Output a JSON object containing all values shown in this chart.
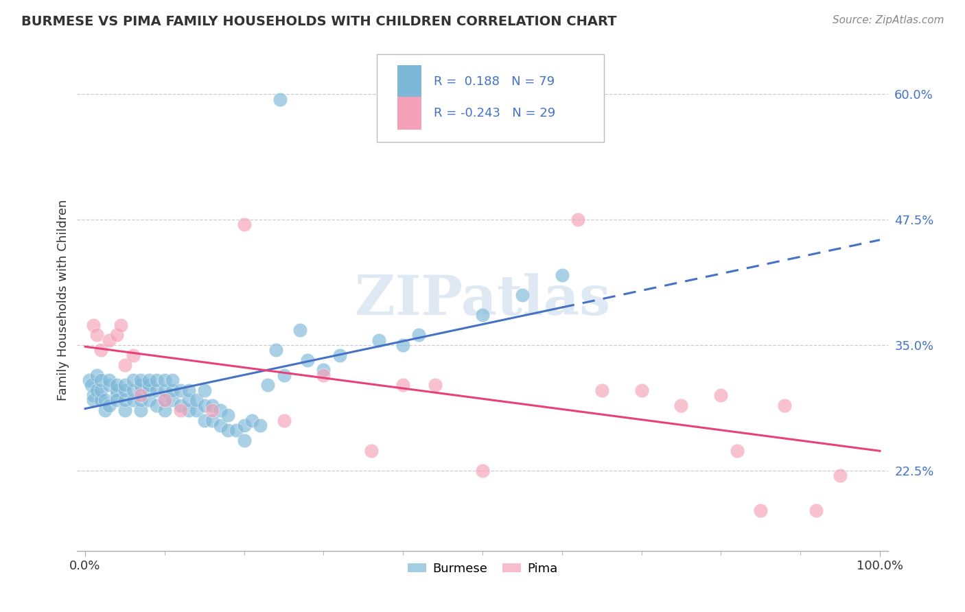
{
  "title": "BURMESE VS PIMA FAMILY HOUSEHOLDS WITH CHILDREN CORRELATION CHART",
  "source": "Source: ZipAtlas.com",
  "ylabel": "Family Households with Children",
  "burmese_color": "#7db8d8",
  "pima_color": "#f4a0b8",
  "burmese_line_color": "#4472c4",
  "pima_line_color": "#e8407a",
  "watermark": "ZIPatlas",
  "ytick_vals": [
    0.225,
    0.35,
    0.475,
    0.6
  ],
  "ytick_labels": [
    "22.5%",
    "35.0%",
    "47.5%",
    "60.0%"
  ],
  "burmese_x": [
    0.005,
    0.008,
    0.01,
    0.01,
    0.015,
    0.015,
    0.02,
    0.02,
    0.02,
    0.025,
    0.025,
    0.03,
    0.03,
    0.03,
    0.04,
    0.04,
    0.04,
    0.04,
    0.05,
    0.05,
    0.05,
    0.05,
    0.06,
    0.06,
    0.06,
    0.07,
    0.07,
    0.07,
    0.07,
    0.07,
    0.08,
    0.08,
    0.08,
    0.08,
    0.09,
    0.09,
    0.09,
    0.1,
    0.1,
    0.1,
    0.1,
    0.11,
    0.11,
    0.11,
    0.12,
    0.12,
    0.13,
    0.13,
    0.13,
    0.14,
    0.14,
    0.15,
    0.15,
    0.15,
    0.16,
    0.16,
    0.17,
    0.17,
    0.18,
    0.18,
    0.19,
    0.2,
    0.2,
    0.21,
    0.22,
    0.23,
    0.24,
    0.25,
    0.27,
    0.28,
    0.3,
    0.32,
    0.37,
    0.4,
    0.42,
    0.5,
    0.55,
    0.6,
    0.245
  ],
  "burmese_y": [
    0.315,
    0.31,
    0.3,
    0.295,
    0.305,
    0.32,
    0.295,
    0.305,
    0.315,
    0.285,
    0.295,
    0.31,
    0.315,
    0.29,
    0.3,
    0.305,
    0.31,
    0.295,
    0.285,
    0.295,
    0.305,
    0.31,
    0.295,
    0.305,
    0.315,
    0.285,
    0.295,
    0.305,
    0.31,
    0.315,
    0.295,
    0.305,
    0.31,
    0.315,
    0.29,
    0.305,
    0.315,
    0.285,
    0.295,
    0.305,
    0.315,
    0.295,
    0.305,
    0.315,
    0.29,
    0.305,
    0.285,
    0.295,
    0.305,
    0.285,
    0.295,
    0.275,
    0.29,
    0.305,
    0.275,
    0.29,
    0.27,
    0.285,
    0.265,
    0.28,
    0.265,
    0.255,
    0.27,
    0.275,
    0.27,
    0.31,
    0.345,
    0.32,
    0.365,
    0.335,
    0.325,
    0.34,
    0.355,
    0.35,
    0.36,
    0.38,
    0.4,
    0.42,
    0.595
  ],
  "pima_x": [
    0.01,
    0.015,
    0.02,
    0.03,
    0.04,
    0.045,
    0.05,
    0.06,
    0.07,
    0.1,
    0.12,
    0.16,
    0.2,
    0.25,
    0.3,
    0.36,
    0.4,
    0.44,
    0.5,
    0.62,
    0.65,
    0.7,
    0.75,
    0.8,
    0.82,
    0.85,
    0.88,
    0.92,
    0.95
  ],
  "pima_y": [
    0.37,
    0.36,
    0.345,
    0.355,
    0.36,
    0.37,
    0.33,
    0.34,
    0.3,
    0.295,
    0.285,
    0.285,
    0.47,
    0.275,
    0.32,
    0.245,
    0.31,
    0.31,
    0.225,
    0.475,
    0.305,
    0.305,
    0.29,
    0.3,
    0.245,
    0.185,
    0.29,
    0.185,
    0.22
  ]
}
